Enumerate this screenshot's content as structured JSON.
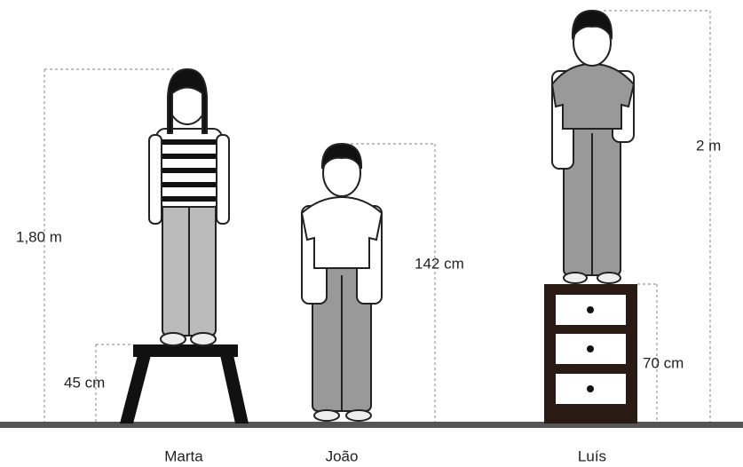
{
  "figures": [
    {
      "name": "Marta",
      "height_label": "1,80 m",
      "support_label": "45 cm"
    },
    {
      "name": "João",
      "height_label": "142 cm"
    },
    {
      "name": "Luís",
      "height_label": "2 m",
      "support_label": "70 cm"
    }
  ]
}
